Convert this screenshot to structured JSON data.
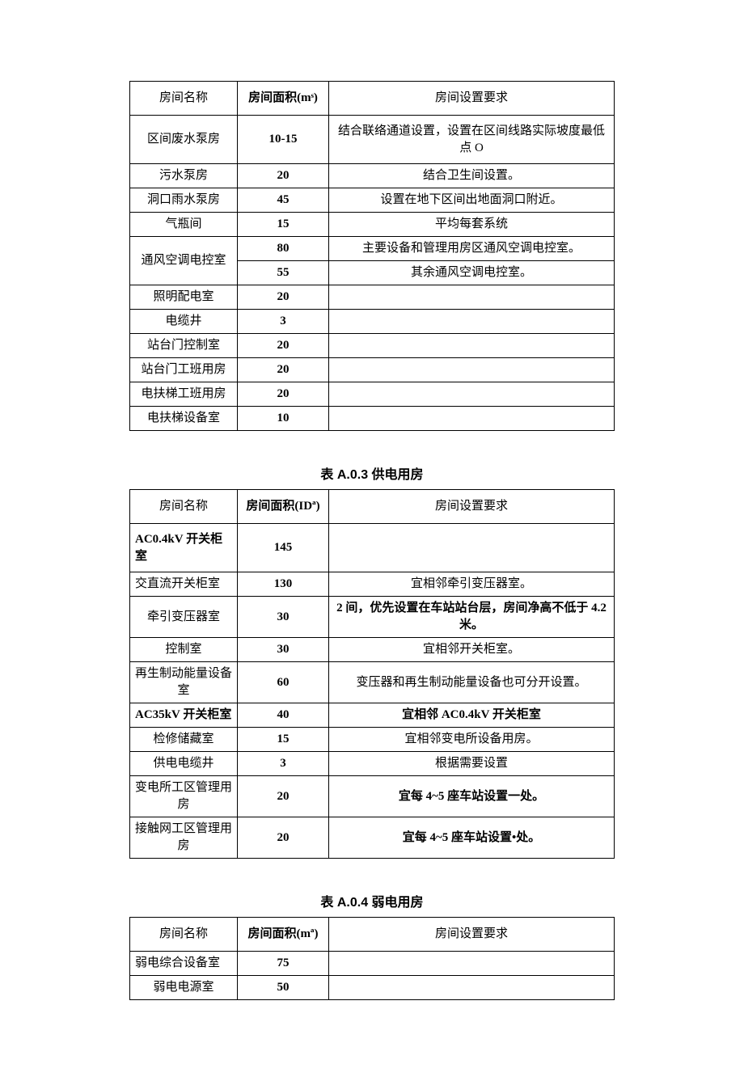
{
  "table1": {
    "headers": {
      "name": "房间名称",
      "area": "房间面积(mˢ)",
      "req": "房间设置要求"
    },
    "rows": [
      {
        "name": "区间废水泵房",
        "area": "10-15",
        "req": "结合联络通道设置，设置在区间线路实际坡度最低点 O",
        "tall": true
      },
      {
        "name": "污水泵房",
        "area": "20",
        "req": "结合卫生间设置。"
      },
      {
        "name": "洞口雨水泵房",
        "area": "45",
        "req": "设置在地下区间出地面洞口附近。"
      },
      {
        "name": "气瓶间",
        "area": "15",
        "req": "平均每套系统"
      },
      {
        "name": "通风空调电控室",
        "area": "80",
        "req": "主要设备和管理用房区通风空调电控室。",
        "rowspan": 2
      },
      {
        "name": "",
        "area": "55",
        "req": "其余通风空调电控室。",
        "skipName": true
      },
      {
        "name": "照明配电室",
        "area": "20",
        "req": ""
      },
      {
        "name": "电缆井",
        "area": "3",
        "req": ""
      },
      {
        "name": "站台门控制室",
        "area": "20",
        "req": ""
      },
      {
        "name": "站台门工班用房",
        "area": "20",
        "req": ""
      },
      {
        "name": "电扶梯工班用房",
        "area": "20",
        "req": ""
      },
      {
        "name": "电扶梯设备室",
        "area": "10",
        "req": ""
      }
    ]
  },
  "table2": {
    "title": "表 A.0.3 供电用房",
    "headers": {
      "name": "房间名称",
      "area": "房间面积(IDª)",
      "req": "房间设置要求"
    },
    "rows": [
      {
        "name": "AC0.4kV 开关柜室",
        "area": "145",
        "req": "",
        "nameBold": true,
        "tall": true,
        "nameAlign": "left"
      },
      {
        "name": "交直流开关柜室",
        "area": "130",
        "req": "宜相邻牵引变压器室。",
        "nameAlign": "left"
      },
      {
        "name": "牵引变压器室",
        "area": "30",
        "req": "2 间，优先设置在车站站台层，房间净高不低于 4.2 米。",
        "reqBold": true,
        "mid": true
      },
      {
        "name": "控制室",
        "area": "30",
        "req": "宜相邻开关柜室。"
      },
      {
        "name": "再生制动能量设备室",
        "area": "60",
        "req": "变压器和再生制动能量设备也可分开设置。",
        "mid": true
      },
      {
        "name": "AC35kV 开关柜室",
        "area": "40",
        "req": "宜相邻 AC0.4kV 开关柜室",
        "nameBold": true,
        "reqBold": true,
        "nameAlign": "left"
      },
      {
        "name": "检修储藏室",
        "area": "15",
        "req": "宜相邻变电所设备用房。"
      },
      {
        "name": "供电电缆井",
        "area": "3",
        "req": "根据需要设置"
      },
      {
        "name": "变电所工区管理用房",
        "area": "20",
        "req": "宜每 4~5 座车站设置一处。",
        "reqBold": true,
        "mid": true
      },
      {
        "name": "接触网工区管理用房",
        "area": "20",
        "req": "宜每 4~5 座车站设置•处。",
        "reqBold": true,
        "mid": true
      }
    ]
  },
  "table3": {
    "title": "表 A.0.4 弱电用房",
    "headers": {
      "name": "房间名称",
      "area": "房间面积(mª)",
      "req": "房间设置要求"
    },
    "rows": [
      {
        "name": "弱电综合设备室",
        "area": "75",
        "req": "",
        "nameAlign": "left"
      },
      {
        "name": "弱电电源室",
        "area": "50",
        "req": ""
      }
    ]
  }
}
